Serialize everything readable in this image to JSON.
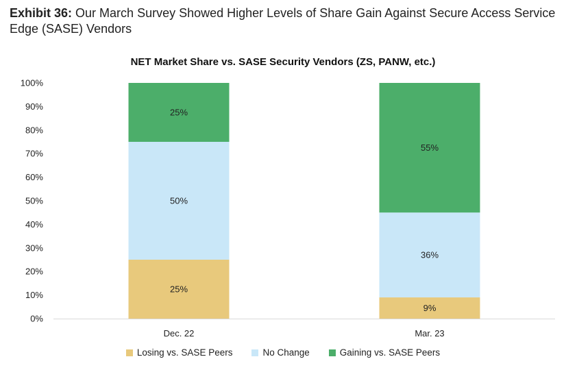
{
  "exhibit": {
    "label": "Exhibit 36:",
    "text": "Our March Survey Showed Higher Levels of Share Gain Against Secure Access Service Edge (SASE) Vendors"
  },
  "chart_data": {
    "type": "bar",
    "stacked": true,
    "title": "NET Market Share vs. SASE Security Vendors (ZS, PANW, etc.)",
    "xlabel": "",
    "ylabel": "",
    "ylim": [
      0,
      100
    ],
    "y_ticks": [
      "0%",
      "10%",
      "20%",
      "30%",
      "40%",
      "50%",
      "60%",
      "70%",
      "80%",
      "90%",
      "100%"
    ],
    "categories": [
      "Dec. 22",
      "Mar. 23"
    ],
    "series": [
      {
        "name": "Losing vs. SASE Peers",
        "values": [
          25,
          9
        ],
        "labels": [
          "25%",
          "9%"
        ],
        "color": "#E8C97C"
      },
      {
        "name": "No Change",
        "values": [
          50,
          36
        ],
        "labels": [
          "50%",
          "36%"
        ],
        "color": "#C9E7F8"
      },
      {
        "name": "Gaining vs. SASE Peers",
        "values": [
          25,
          55
        ],
        "labels": [
          "25%",
          "55%"
        ],
        "color": "#4CAE6A"
      }
    ],
    "grid": false,
    "legend_position": "bottom"
  }
}
